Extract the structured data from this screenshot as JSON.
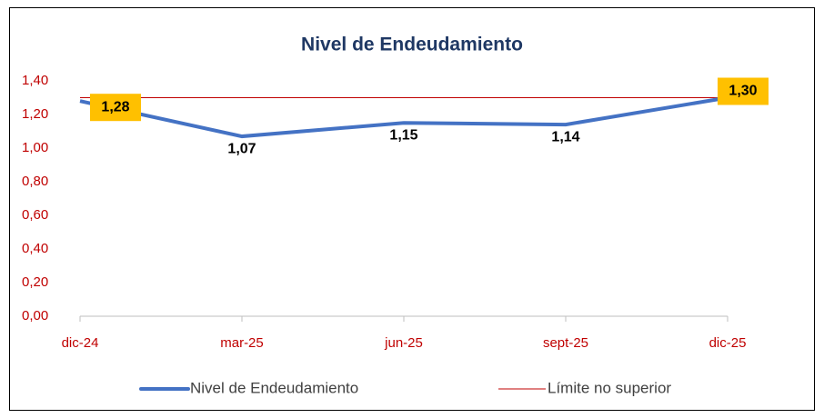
{
  "chart_data": {
    "type": "line",
    "title": "Nivel de Endeudamiento",
    "categories": [
      "dic-24",
      "mar-25",
      "jun-25",
      "sept-25",
      "dic-25"
    ],
    "series": [
      {
        "name": "Nivel de Endeudamiento",
        "color": "#4472c4",
        "values": [
          1.28,
          1.07,
          1.15,
          1.14,
          1.3
        ],
        "value_labels": [
          "1,28",
          "1,07",
          "1,15",
          "1,14",
          "1,30"
        ]
      },
      {
        "name": "Límite no superior",
        "color": "#c00000",
        "values": [
          1.3,
          1.3,
          1.3,
          1.3,
          1.3
        ]
      }
    ],
    "ylim": [
      0,
      1.4
    ],
    "yticks": [
      {
        "value": 0,
        "label": "0,00"
      },
      {
        "value": 0.2,
        "label": "0,20"
      },
      {
        "value": 0.4,
        "label": "0,40"
      },
      {
        "value": 0.6,
        "label": "0,60"
      },
      {
        "value": 0.8,
        "label": "0,80"
      },
      {
        "value": 1.0,
        "label": "1,00"
      },
      {
        "value": 1.2,
        "label": "1,20"
      },
      {
        "value": 1.4,
        "label": "1,40"
      }
    ],
    "tick_color": "#c00000",
    "title_color": "#1f3864",
    "label_box_color": "#ffc000",
    "grid": false,
    "legend": "bottom"
  }
}
